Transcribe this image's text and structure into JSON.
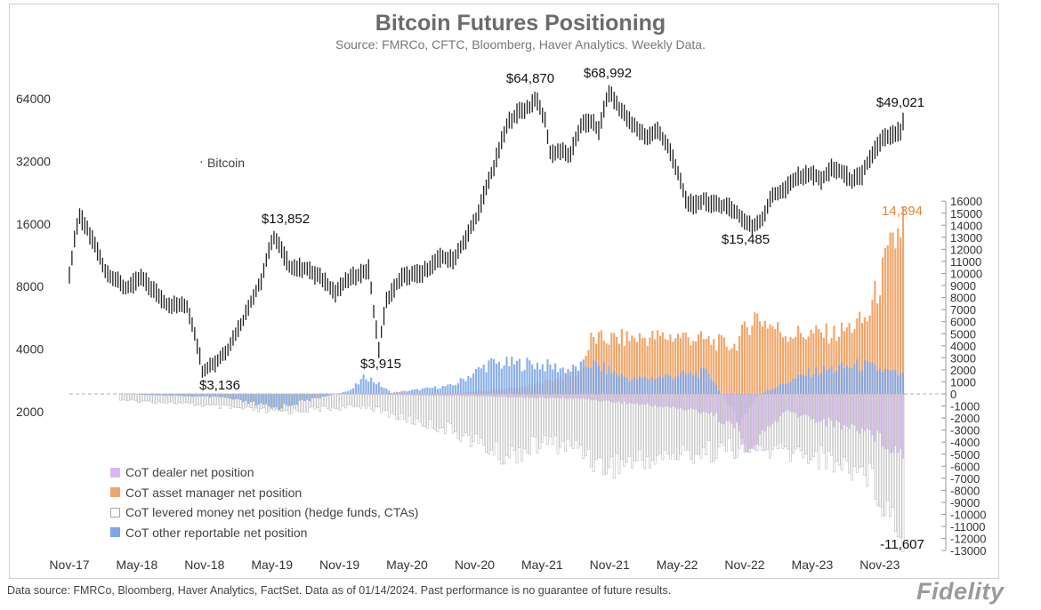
{
  "title": "Bitcoin Futures Positioning",
  "subtitle": "Source: FMRCo, CFTC, Bloomberg, Haver Analytics. Weekly Data.",
  "footnote": "Data source: FMRCo, Bloomberg, Haver Analytics, FactSet. Data as of 01/14/2024. Past performance is no guarantee of future results.",
  "logo": "Fidelity",
  "colors": {
    "bitcoin": "#222222",
    "dealer": "#d9b8f2",
    "asset_manager": "#f0a66a",
    "levered": "#e2e2e2",
    "other": "#7ea6e8",
    "zero_line": "#b0b0b0",
    "peak_label": "#e3832f"
  },
  "chart_data": {
    "type": "line",
    "title": "Bitcoin Futures Positioning",
    "x_tick_labels": [
      "Nov-17",
      "May-18",
      "Nov-18",
      "May-19",
      "Nov-19",
      "May-20",
      "Nov-20",
      "May-21",
      "Nov-21",
      "May-22",
      "Nov-22",
      "May-23",
      "Nov-23"
    ],
    "left_axis": {
      "label": "Bitcoin",
      "scale": "log2",
      "range": [
        2000,
        90000
      ],
      "ticks": [
        "64000",
        "32000",
        "16000",
        "8000",
        "4000",
        "2000"
      ]
    },
    "right_axis": {
      "range": [
        -13000,
        16000
      ],
      "ticks": [
        "16000",
        "15000",
        "14000",
        "13000",
        "12000",
        "11000",
        "10000",
        "9000",
        "8000",
        "7000",
        "6000",
        "5000",
        "4000",
        "3000",
        "2000",
        "1000",
        "0",
        "-1000",
        "-2000",
        "-3000",
        "-4000",
        "-5000",
        "-6000",
        "-7000",
        "-8000",
        "-9000",
        "-10000",
        "-11000",
        "-12000",
        "-13000"
      ]
    },
    "bitcoin_series_label": "Bitcoin",
    "bitcoin_anchor_points": [
      {
        "t": 0,
        "v": 9000
      },
      {
        "t": 4,
        "v": 17500
      },
      {
        "t": 14,
        "v": 9500
      },
      {
        "t": 22,
        "v": 7800
      },
      {
        "t": 28,
        "v": 8800
      },
      {
        "t": 38,
        "v": 6600
      },
      {
        "t": 46,
        "v": 6400
      },
      {
        "t": 52,
        "v": 3136
      },
      {
        "t": 58,
        "v": 3500
      },
      {
        "t": 62,
        "v": 4000
      },
      {
        "t": 68,
        "v": 5500
      },
      {
        "t": 75,
        "v": 8500
      },
      {
        "t": 80,
        "v": 13852
      },
      {
        "t": 86,
        "v": 10000
      },
      {
        "t": 92,
        "v": 9800
      },
      {
        "t": 100,
        "v": 8500
      },
      {
        "t": 104,
        "v": 7500
      },
      {
        "t": 110,
        "v": 8800
      },
      {
        "t": 117,
        "v": 9700
      },
      {
        "t": 119,
        "v": 6000
      },
      {
        "t": 121,
        "v": 3915
      },
      {
        "t": 124,
        "v": 6800
      },
      {
        "t": 130,
        "v": 8900
      },
      {
        "t": 138,
        "v": 9300
      },
      {
        "t": 145,
        "v": 11000
      },
      {
        "t": 150,
        "v": 10800
      },
      {
        "t": 155,
        "v": 13500
      },
      {
        "t": 160,
        "v": 18000
      },
      {
        "t": 166,
        "v": 30000
      },
      {
        "t": 172,
        "v": 50000
      },
      {
        "t": 176,
        "v": 56000
      },
      {
        "t": 180,
        "v": 58000
      },
      {
        "t": 182,
        "v": 64870
      },
      {
        "t": 186,
        "v": 50000
      },
      {
        "t": 188,
        "v": 35000
      },
      {
        "t": 192,
        "v": 36000
      },
      {
        "t": 196,
        "v": 34000
      },
      {
        "t": 200,
        "v": 48000
      },
      {
        "t": 204,
        "v": 50000
      },
      {
        "t": 207,
        "v": 45000
      },
      {
        "t": 211,
        "v": 68992
      },
      {
        "t": 215,
        "v": 58000
      },
      {
        "t": 220,
        "v": 48000
      },
      {
        "t": 226,
        "v": 42000
      },
      {
        "t": 230,
        "v": 45000
      },
      {
        "t": 234,
        "v": 38000
      },
      {
        "t": 237,
        "v": 30000
      },
      {
        "t": 241,
        "v": 21000
      },
      {
        "t": 244,
        "v": 19500
      },
      {
        "t": 248,
        "v": 21000
      },
      {
        "t": 252,
        "v": 19800
      },
      {
        "t": 258,
        "v": 19500
      },
      {
        "t": 264,
        "v": 16500
      },
      {
        "t": 267,
        "v": 15485
      },
      {
        "t": 271,
        "v": 17000
      },
      {
        "t": 275,
        "v": 22000
      },
      {
        "t": 279,
        "v": 23000
      },
      {
        "t": 285,
        "v": 27000
      },
      {
        "t": 290,
        "v": 28000
      },
      {
        "t": 294,
        "v": 26000
      },
      {
        "t": 298,
        "v": 29500
      },
      {
        "t": 302,
        "v": 28500
      },
      {
        "t": 306,
        "v": 26000
      },
      {
        "t": 310,
        "v": 27500
      },
      {
        "t": 314,
        "v": 35000
      },
      {
        "t": 318,
        "v": 41000
      },
      {
        "t": 322,
        "v": 43000
      },
      {
        "t": 325,
        "v": 45000
      },
      {
        "t": 326,
        "v": 49021
      }
    ],
    "positioning_anchor_points": {
      "dealer": [
        [
          0,
          0
        ],
        [
          100,
          0
        ],
        [
          160,
          -200
        ],
        [
          200,
          -400
        ],
        [
          230,
          -1000
        ],
        [
          250,
          -1500
        ],
        [
          262,
          -3000
        ],
        [
          266,
          -5500
        ],
        [
          270,
          -3500
        ],
        [
          280,
          -1500
        ],
        [
          300,
          -2500
        ],
        [
          312,
          -3000
        ],
        [
          326,
          -5000
        ]
      ],
      "asset_manager": [
        [
          0,
          0
        ],
        [
          150,
          0
        ],
        [
          178,
          600
        ],
        [
          200,
          1800
        ],
        [
          204,
          4500
        ],
        [
          240,
          4800
        ],
        [
          260,
          4000
        ],
        [
          268,
          6500
        ],
        [
          280,
          5000
        ],
        [
          300,
          5000
        ],
        [
          312,
          6200
        ],
        [
          318,
          10000
        ],
        [
          326,
          14394
        ]
      ],
      "levered": [
        [
          0,
          -400
        ],
        [
          40,
          -700
        ],
        [
          80,
          -1500
        ],
        [
          116,
          -1000
        ],
        [
          130,
          -2000
        ],
        [
          150,
          -3000
        ],
        [
          170,
          -5200
        ],
        [
          186,
          -4000
        ],
        [
          200,
          -4500
        ],
        [
          208,
          -6000
        ],
        [
          240,
          -5000
        ],
        [
          260,
          -4500
        ],
        [
          290,
          -5000
        ],
        [
          312,
          -6500
        ],
        [
          326,
          -11607
        ]
      ],
      "other": [
        [
          0,
          200
        ],
        [
          20,
          0
        ],
        [
          60,
          -300
        ],
        [
          80,
          -1200
        ],
        [
          110,
          300
        ],
        [
          116,
          1500
        ],
        [
          126,
          100
        ],
        [
          150,
          700
        ],
        [
          164,
          2500
        ],
        [
          182,
          2500
        ],
        [
          196,
          2000
        ],
        [
          204,
          2500
        ],
        [
          220,
          1200
        ],
        [
          250,
          1800
        ],
        [
          262,
          -2500
        ],
        [
          270,
          0
        ],
        [
          290,
          1800
        ],
        [
          310,
          2400
        ],
        [
          326,
          1500
        ]
      ]
    },
    "annotations": [
      {
        "text": "$3,136",
        "series": "bitcoin",
        "at": "Nov-18 low"
      },
      {
        "text": "$13,852",
        "series": "bitcoin",
        "at": "Jun-19 high"
      },
      {
        "text": "$3,915",
        "series": "bitcoin",
        "at": "Mar-20 low"
      },
      {
        "text": "$64,870",
        "series": "bitcoin",
        "at": "Apr-21 high"
      },
      {
        "text": "$68,992",
        "series": "bitcoin",
        "at": "Nov-21 high"
      },
      {
        "text": "$15,485",
        "series": "bitcoin",
        "at": "Nov-22 low"
      },
      {
        "text": "$49,021",
        "series": "bitcoin",
        "at": "latest"
      },
      {
        "text": "14,394",
        "series": "asset_manager",
        "at": "latest"
      },
      {
        "text": "-11,607",
        "series": "levered",
        "at": "latest"
      }
    ],
    "legend": [
      {
        "label": "CoT dealer net position",
        "key": "dealer"
      },
      {
        "label": "CoT asset manager net position",
        "key": "asset_manager"
      },
      {
        "label": "CoT levered money net position (hedge funds, CTAs)",
        "key": "levered"
      },
      {
        "label": "CoT  other reportable net position",
        "key": "other"
      }
    ]
  }
}
